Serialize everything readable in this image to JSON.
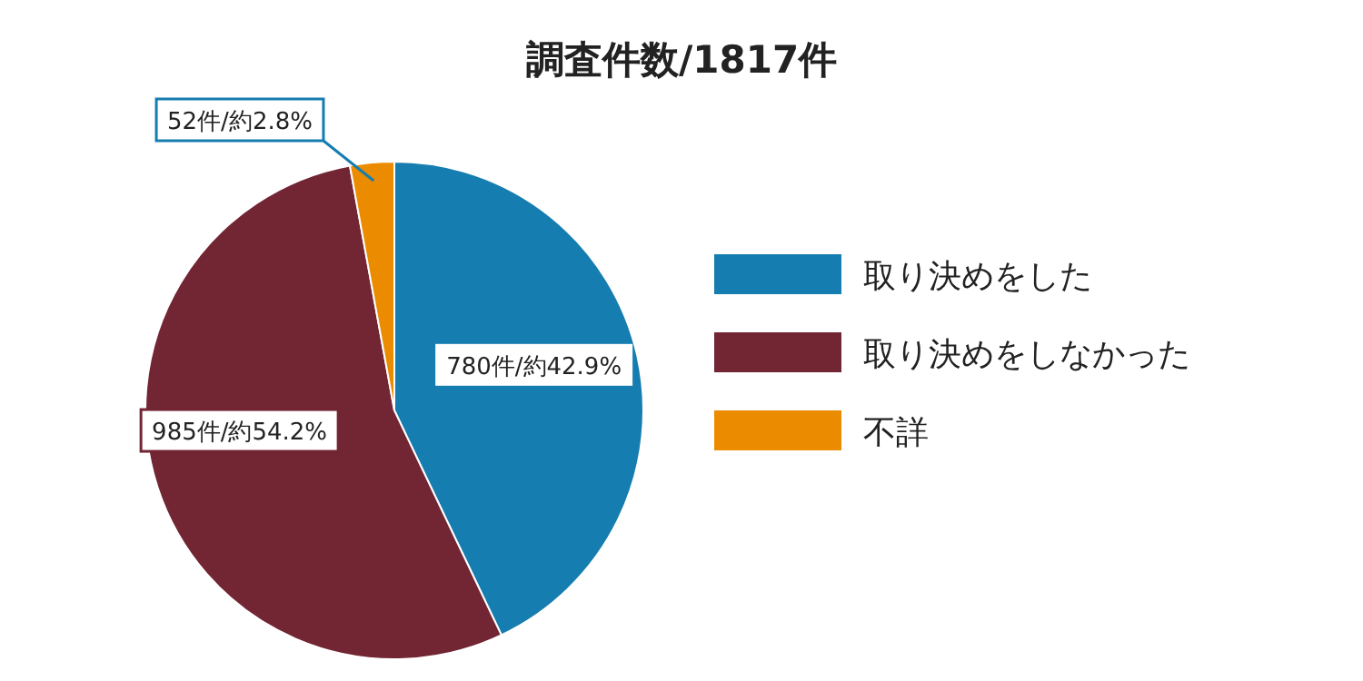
{
  "chart_data": {
    "type": "pie",
    "title": "調査件数/1817件",
    "categories": [
      "取り決めをした",
      "取り決めをしなかった",
      "不詳"
    ],
    "values": [
      780,
      985,
      52
    ],
    "colors": [
      "#167db0",
      "#722533",
      "#eb8c00"
    ],
    "value_labels": [
      "780件/約42.9%",
      "985件/約54.2%",
      "52件/約2.8%"
    ],
    "legend": "right"
  }
}
